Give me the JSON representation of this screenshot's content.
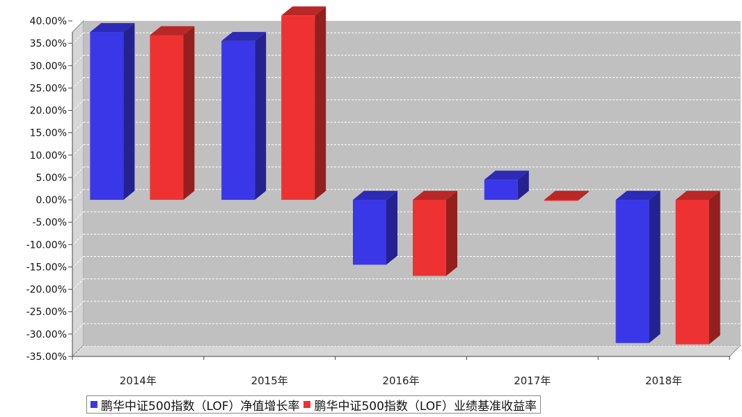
{
  "chart_data": {
    "type": "bar",
    "categories": [
      "2014年",
      "2015年",
      "2016年",
      "2017年",
      "2018年"
    ],
    "series": [
      {
        "name": "鹏华中证500指数（LOF）净值增长率",
        "color": "#3a37e8",
        "values": [
          37.5,
          35.5,
          -14.5,
          4.5,
          -32.0
        ]
      },
      {
        "name": "鹏华中证500指数（LOF）业绩基准收益率",
        "color": "#ee3232",
        "values": [
          36.8,
          41.2,
          -17.0,
          -0.2,
          -32.3
        ]
      }
    ],
    "yticks": [
      "40.00%",
      "35.00%",
      "30.00%",
      "25.00%",
      "20.00%",
      "15.00%",
      "10.00%",
      "5.00%",
      "0.00%",
      "-5.00%",
      "-10.00%",
      "-15.00%",
      "-20.00%",
      "-25.00%",
      "-30.00%",
      "-35.00%"
    ],
    "ylim": [
      -35,
      40
    ],
    "grid": true,
    "three_d": true,
    "legend_position": "bottom",
    "plot_background": "#c0c0c0"
  }
}
